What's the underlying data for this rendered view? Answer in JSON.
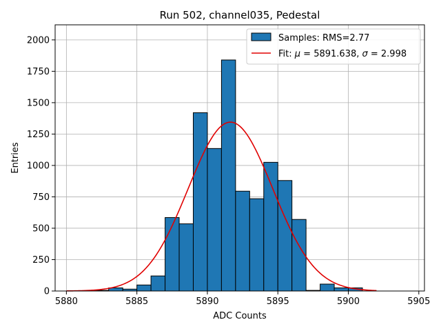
{
  "chart_data": {
    "type": "bar",
    "title": "Run 502, channel035, Pedestal",
    "xlabel": "ADC Counts",
    "ylabel": "Entries",
    "xlim": [
      5879.2,
      5905.4
    ],
    "ylim": [
      0,
      2120
    ],
    "xticks": [
      5880,
      5885,
      5890,
      5895,
      5900,
      5905
    ],
    "yticks": [
      0,
      250,
      500,
      750,
      1000,
      1250,
      1500,
      1750,
      2000
    ],
    "grid": true,
    "legend_position": "top-right",
    "bin_width": 1,
    "histogram": {
      "name": "Samples: RMS=2.77",
      "color": "#1f77b4",
      "bins": [
        {
          "x": 5882,
          "count": 5
        },
        {
          "x": 5883,
          "count": 25
        },
        {
          "x": 5884,
          "count": 15
        },
        {
          "x": 5885,
          "count": 48
        },
        {
          "x": 5886,
          "count": 120
        },
        {
          "x": 5887,
          "count": 585
        },
        {
          "x": 5888,
          "count": 535
        },
        {
          "x": 5889,
          "count": 1420
        },
        {
          "x": 5890,
          "count": 1135
        },
        {
          "x": 5891,
          "count": 1840
        },
        {
          "x": 5892,
          "count": 795
        },
        {
          "x": 5893,
          "count": 735
        },
        {
          "x": 5894,
          "count": 1025
        },
        {
          "x": 5895,
          "count": 880
        },
        {
          "x": 5896,
          "count": 570
        },
        {
          "x": 5897,
          "count": 5
        },
        {
          "x": 5898,
          "count": 55
        },
        {
          "x": 5899,
          "count": 25
        },
        {
          "x": 5900,
          "count": 25
        }
      ]
    },
    "fit": {
      "name_prefix": "Fit: ",
      "mu_symbol": "μ",
      "mu_text": " = 5891.638, ",
      "sigma_symbol": "σ",
      "sigma_text": " = 2.998",
      "color": "#e00000",
      "mu": 5891.638,
      "sigma": 2.998,
      "amplitude": 1345,
      "x_range": [
        5880,
        5902
      ]
    }
  }
}
